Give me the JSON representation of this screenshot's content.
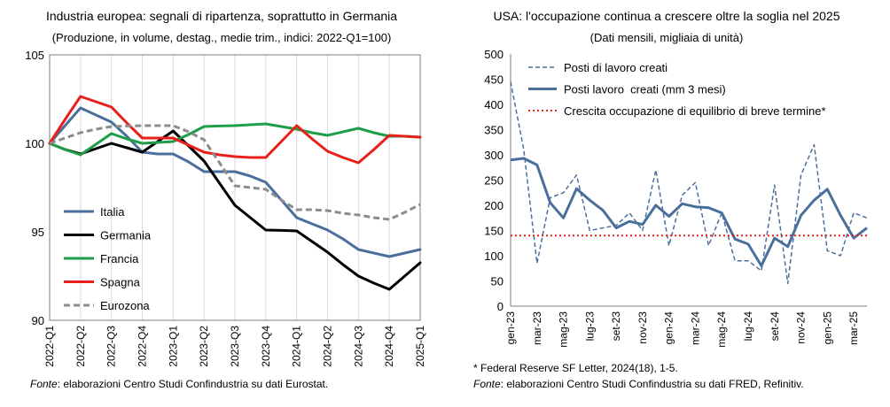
{
  "left": {
    "title": "Industria europea: segnali di ripartenza, soprattutto in Germania",
    "subtitle": "(Produzione, in volume, destag., medie trim., indici: 2022-Q1=100)",
    "footnote_source_label": "Fonte",
    "footnote_source_text": ": elaborazioni Centro Studi Confindustria su dati Eurostat."
  },
  "right": {
    "title": "USA: l'occupazione continua a crescere oltre la soglia nel 2025",
    "subtitle": "(Dati mensili, migliaia di unità)",
    "footnote_star": "* Federal Reserve SF Letter, 2024(18), 1-5.",
    "footnote_source_label": "Fonte",
    "footnote_source_text": ": elaborazioni Centro Studi Confindustria su dati FRED, Refinitiv."
  },
  "chart_data": [
    {
      "type": "line",
      "title": "Industria europea: segnali di ripartenza, soprattutto in Germania",
      "subtitle": "(Produzione, in volume, destag., medie trim., indici: 2022-Q1=100)",
      "categories": [
        "2022-Q1",
        "2022-Q2",
        "2022-Q3",
        "2022-Q4",
        "2023-Q1",
        "2023-Q2",
        "2023-Q3",
        "2023-Q4",
        "2024-Q1",
        "2024-Q2",
        "2024-Q3",
        "2024-Q4",
        "2025-Q1"
      ],
      "x_tick_labels": [
        "2022-Q1",
        "2022-Q2",
        "2022-Q3",
        "2022-Q4",
        "2023-Q1",
        "2023-Q2",
        "2023-Q3",
        "2023-Q4",
        "2024-Q1",
        "2024-Q2",
        "2024-Q3",
        "2024-Q4",
        "2025-Q1"
      ],
      "y_ticks": [
        90,
        95,
        100,
        105
      ],
      "ylim": [
        90,
        105
      ],
      "grid": "vertical",
      "legend_position": "bottom-left",
      "series": [
        {
          "name": "Italia",
          "color": "#4a6f9c",
          "dash": "solid",
          "x": [
            0,
            0.5,
            1,
            1.5,
            2,
            2.5,
            3,
            3.5,
            4,
            4.5,
            5,
            5.5,
            6,
            6.5,
            7,
            7.5,
            8,
            8.5,
            9,
            9.5,
            10,
            10.5,
            11,
            11.5,
            12
          ],
          "y": [
            100,
            101.0,
            102.0,
            101.6,
            101.2,
            100.4,
            99.5,
            99.4,
            99.4,
            98.95,
            98.4,
            98.4,
            98.4,
            98.15,
            97.8,
            96.8,
            95.8,
            95.45,
            95.1,
            94.6,
            94.0,
            93.8,
            93.6,
            93.8,
            94.0
          ]
        },
        {
          "name": "Germania",
          "color": "#000000",
          "dash": "solid",
          "x": [
            0,
            0.5,
            1,
            1.5,
            2,
            2.5,
            3,
            3.5,
            4,
            4.5,
            5,
            5.5,
            6,
            6.5,
            7,
            7.5,
            8,
            8.5,
            9,
            9.5,
            10,
            10.5,
            11,
            11.5,
            12
          ],
          "y": [
            100,
            99.65,
            99.4,
            99.7,
            100.0,
            99.75,
            99.5,
            100.1,
            100.7,
            99.85,
            99.0,
            97.75,
            96.5,
            95.8,
            95.1,
            95.08,
            95.05,
            94.45,
            93.85,
            93.15,
            92.5,
            92.1,
            91.75,
            92.5,
            93.25
          ]
        },
        {
          "name": "Francia",
          "color": "#1f9e48",
          "dash": "solid",
          "x": [
            0,
            0.5,
            1,
            1.5,
            2,
            2.5,
            3,
            3.5,
            4,
            4.5,
            5,
            5.5,
            6,
            6.5,
            7,
            7.5,
            8,
            8.5,
            9,
            9.5,
            10,
            10.5,
            11,
            11.5,
            12
          ],
          "y": [
            100,
            99.65,
            99.35,
            99.95,
            100.55,
            100.25,
            100.0,
            100.05,
            100.1,
            100.5,
            100.95,
            100.98,
            101.0,
            101.05,
            101.1,
            100.95,
            100.8,
            100.6,
            100.45,
            100.65,
            100.85,
            100.6,
            100.4,
            100.4,
            100.35
          ]
        },
        {
          "name": "Spagna",
          "color": "#e8201b",
          "dash": "solid",
          "x": [
            0,
            0.5,
            1,
            1.5,
            2,
            2.5,
            3,
            3.5,
            4,
            4.5,
            5,
            5.5,
            6,
            6.5,
            7,
            7.5,
            8,
            8.5,
            9,
            9.5,
            10,
            10.5,
            11,
            11.5,
            12
          ],
          "y": [
            100,
            101.35,
            102.65,
            102.35,
            102.05,
            101.15,
            100.3,
            100.3,
            100.3,
            99.9,
            99.5,
            99.35,
            99.25,
            99.2,
            99.2,
            100.1,
            101.0,
            100.25,
            99.55,
            99.2,
            98.9,
            99.65,
            100.45,
            100.4,
            100.35
          ]
        },
        {
          "name": "Eurozona",
          "color": "#8c8c8c",
          "dash": "dashed",
          "x": [
            0,
            0.5,
            1,
            1.5,
            2,
            2.5,
            3,
            3.5,
            4,
            4.5,
            5,
            5.5,
            6,
            6.5,
            7,
            7.5,
            8,
            8.5,
            9,
            9.5,
            10,
            10.5,
            11,
            11.5,
            12
          ],
          "y": [
            100,
            100.3,
            100.6,
            100.8,
            100.95,
            100.98,
            101.0,
            101.0,
            101.0,
            100.65,
            100.2,
            98.9,
            97.6,
            97.5,
            97.4,
            96.8,
            96.25,
            96.25,
            96.2,
            96.05,
            95.95,
            95.8,
            95.7,
            96.1,
            96.55
          ]
        }
      ]
    },
    {
      "type": "line",
      "title": "USA: l'occupazione continua a crescere oltre la soglia nel 2025",
      "subtitle": "(Dati mensili, migliaia di unità)",
      "categories": [
        "gen-23",
        "feb-23",
        "mar-23",
        "apr-23",
        "mag-23",
        "giu-23",
        "lug-23",
        "ago-23",
        "set-23",
        "ott-23",
        "nov-23",
        "dic-23",
        "gen-24",
        "feb-24",
        "mar-24",
        "apr-24",
        "mag-24",
        "giu-24",
        "lug-24",
        "ago-24",
        "set-24",
        "ott-24",
        "nov-24",
        "dic-24",
        "gen-25",
        "feb-25",
        "mar-25",
        "apr-25"
      ],
      "x_tick_labels": [
        "gen-23",
        "mar-23",
        "mag-23",
        "lug-23",
        "set-23",
        "nov-23",
        "gen-24",
        "mar-24",
        "mag-24",
        "lug-24",
        "set-24",
        "nov-24",
        "gen-25",
        "mar-25"
      ],
      "y_ticks": [
        0,
        50,
        100,
        150,
        200,
        250,
        300,
        350,
        400,
        450,
        500
      ],
      "ylim": [
        0,
        500
      ],
      "grid": "none",
      "legend_position": "top",
      "series": [
        {
          "name": "Posti di lavoro creati",
          "color": "#4a6f9c",
          "dash": "dashed",
          "values": [
            445,
            310,
            85,
            215,
            225,
            260,
            150,
            155,
            160,
            185,
            150,
            270,
            120,
            220,
            245,
            120,
            185,
            90,
            90,
            70,
            240,
            45,
            260,
            320,
            110,
            100,
            185,
            175
          ]
        },
        {
          "name": "Posti lavoro  creati (mm 3 mesi)",
          "color": "#4a6f9c",
          "dash": "solid",
          "values": [
            290,
            293,
            280,
            205,
            175,
            233,
            210,
            190,
            155,
            168,
            162,
            200,
            178,
            203,
            197,
            195,
            185,
            133,
            123,
            80,
            135,
            118,
            180,
            210,
            232,
            180,
            135,
            155
          ]
        },
        {
          "name": "Crescita occupazione di equilibrio di breve termine*",
          "color": "#e8201b",
          "dash": "dotted",
          "values": [
            140,
            140,
            140,
            140,
            140,
            140,
            140,
            140,
            140,
            140,
            140,
            140,
            140,
            140,
            140,
            140,
            140,
            140,
            140,
            140,
            140,
            140,
            140,
            140,
            140,
            140,
            140,
            140
          ]
        }
      ]
    }
  ]
}
